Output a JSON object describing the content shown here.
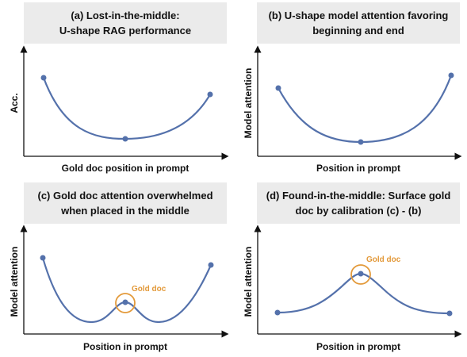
{
  "panels": [
    {
      "title": [
        "(a) Lost-in-the-middle:",
        "U-shape RAG performance"
      ],
      "y_label": "Acc.",
      "x_label": "Gold doc position in prompt"
    },
    {
      "title": [
        "(b) U-shape model attention favoring",
        "beginning and end"
      ],
      "y_label": "Model attention",
      "x_label": "Position in prompt"
    },
    {
      "title": [
        "(c) Gold doc attention overwhelmed",
        "when placed in the middle"
      ],
      "y_label": "Model attention",
      "x_label": "Position in prompt",
      "annotation": "Gold doc"
    },
    {
      "title": [
        "(d) Found-in-the-middle: Surface gold",
        "doc by calibration (c) - (b)"
      ],
      "y_label": "Model attention",
      "x_label": "Position in prompt",
      "annotation": "Gold doc"
    }
  ]
}
